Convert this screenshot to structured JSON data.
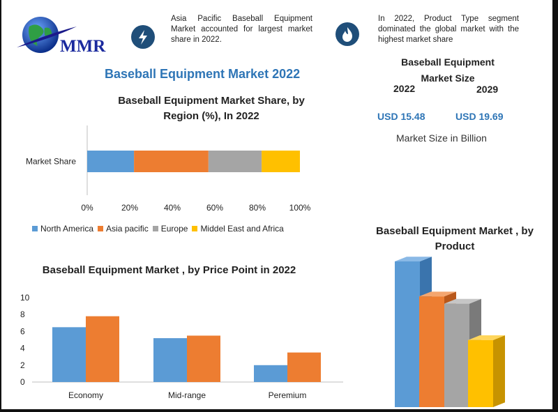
{
  "brand": {
    "logo_text": "MMR"
  },
  "info": {
    "left_text": "Asia Pacific Baseball Equipment Market accounted for largest market share in 2022.",
    "right_text": "In 2022, Product Type segment dominated the global market with the highest market share"
  },
  "icons": {
    "left": "lightning-bolt-icon",
    "right": "flame-icon"
  },
  "main_title": "Baseball Equipment Market 2022",
  "market_size": {
    "title_line1": "Baseball Equipment",
    "title_line2": "Market Size",
    "year_a": "2022",
    "year_b": "2029",
    "value_a": "USD 15.48",
    "value_b": "USD 19.69",
    "caption": "Market Size in Billion"
  },
  "colors": {
    "blue": "#5b9bd5",
    "orange": "#ed7d31",
    "gray": "#a5a5a5",
    "yellow": "#ffc000",
    "accent": "#2e75b6"
  },
  "chart_data": [
    {
      "type": "bar",
      "orientation": "horizontal-stacked-100",
      "title": "Baseball Equipment Market Share, by Region (%), In 2022",
      "categories": [
        "Market Share"
      ],
      "series": [
        {
          "name": "North America",
          "values": [
            22
          ]
        },
        {
          "name": "Asia pacific",
          "values": [
            35
          ]
        },
        {
          "name": "Europe",
          "values": [
            25
          ]
        },
        {
          "name": "Middel East and Africa",
          "values": [
            18
          ]
        }
      ],
      "xticks": [
        "0%",
        "20%",
        "40%",
        "60%",
        "80%",
        "100%"
      ],
      "xlim": [
        0,
        100
      ],
      "legend": "bottom"
    },
    {
      "type": "bar",
      "title": "Baseball Equipment Market , by Price Point in 2022",
      "categories": [
        "Economy",
        "Mid-range",
        "Peremium"
      ],
      "series": [
        {
          "values": [
            6.5,
            5.2,
            2.0
          ]
        },
        {
          "values": [
            7.8,
            5.5,
            3.5
          ]
        }
      ],
      "yticks": [
        "0",
        "2",
        "4",
        "6",
        "8",
        "10"
      ],
      "ylim": [
        0,
        10
      ]
    },
    {
      "type": "bar",
      "style": "3d",
      "title": "Baseball Equipment Market , by Product",
      "series": [
        {
          "values": [
            10
          ]
        },
        {
          "values": [
            7.6
          ]
        },
        {
          "values": [
            7.1
          ]
        },
        {
          "values": [
            4.6
          ]
        }
      ],
      "ylim": [
        0,
        10
      ]
    }
  ]
}
